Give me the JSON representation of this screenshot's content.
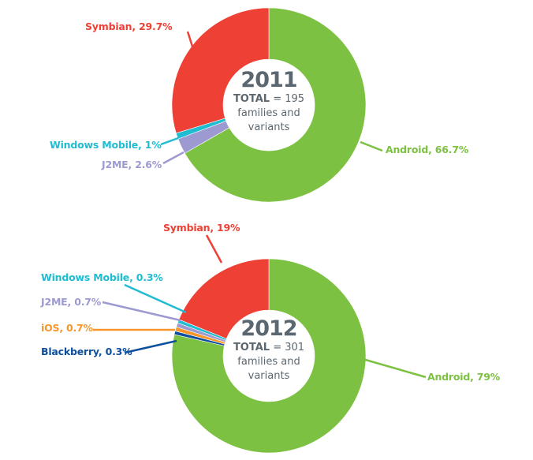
{
  "chart_data": [
    {
      "type": "pie",
      "title": "2011",
      "total_label": "TOTAL",
      "total_value": "= 195",
      "total_desc_1": "families and",
      "total_desc_2": "variants",
      "slices": [
        {
          "name": "Android",
          "value": 66.7,
          "label": "Android, 66.7%",
          "color": "#7dc142"
        },
        {
          "name": "J2ME",
          "value": 2.6,
          "label": "J2ME, 2.6%",
          "color": "#9c9ad1"
        },
        {
          "name": "Windows Mobile",
          "value": 1,
          "label": "Windows Mobile, 1%",
          "color": "#1fbcd2"
        },
        {
          "name": "Symbian",
          "value": 29.7,
          "label": "Symbian, 29.7%",
          "color": "#ee4035"
        }
      ]
    },
    {
      "type": "pie",
      "title": "2012",
      "total_label": "TOTAL",
      "total_value": "= 301",
      "total_desc_1": "families and",
      "total_desc_2": "variants",
      "slices": [
        {
          "name": "Android",
          "value": 79,
          "label": "Android, 79%",
          "color": "#7dc142"
        },
        {
          "name": "Blackberry",
          "value": 0.3,
          "label": "Blackberry, 0.3%",
          "color": "#0d4f9c"
        },
        {
          "name": "iOS",
          "value": 0.7,
          "label": "iOS, 0.7%",
          "color": "#f7962a"
        },
        {
          "name": "J2ME",
          "value": 0.7,
          "label": "J2ME, 0.7%",
          "color": "#9c9ad1"
        },
        {
          "name": "Windows Mobile",
          "value": 0.3,
          "label": "Windows Mobile, 0.3%",
          "color": "#1fbcd2"
        },
        {
          "name": "Symbian",
          "value": 19,
          "label": "Symbian, 19%",
          "color": "#ee4035"
        }
      ]
    }
  ]
}
